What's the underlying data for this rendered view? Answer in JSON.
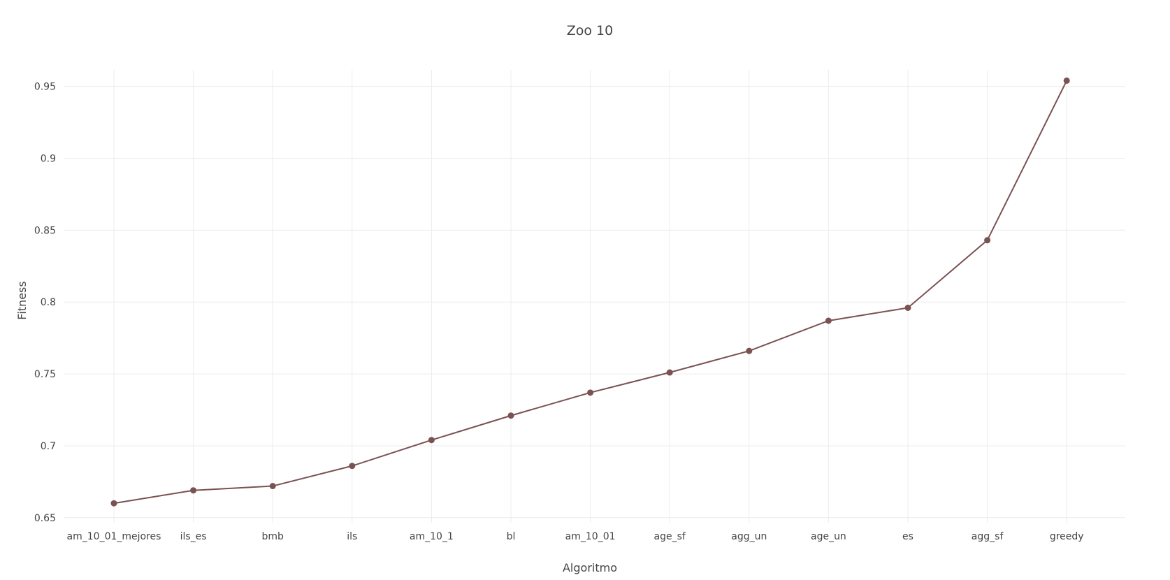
{
  "chart_data": {
    "type": "line",
    "title": "Zoo 10",
    "xlabel": "Algoritmo",
    "ylabel": "Fitness",
    "categories": [
      "am_10_01_mejores",
      "ils_es",
      "bmb",
      "ils",
      "am_10_1",
      "bl",
      "am_10_01",
      "age_sf",
      "agg_un",
      "age_un",
      "es",
      "agg_sf",
      "greedy"
    ],
    "series": [
      {
        "values": [
          0.66,
          0.669,
          0.672,
          0.686,
          0.704,
          0.721,
          0.737,
          0.751,
          0.766,
          0.787,
          0.796,
          0.843,
          0.954
        ]
      }
    ],
    "yticks": [
      0.65,
      0.7,
      0.75,
      0.8,
      0.85,
      0.9,
      0.95
    ],
    "ytick_labels": [
      "0.65",
      "0.7",
      "0.75",
      "0.8",
      "0.85",
      "0.9",
      "0.95"
    ],
    "ylim": [
      0.6465,
      0.9615
    ],
    "grid": true,
    "legend": "none",
    "color": "#7b5152"
  }
}
